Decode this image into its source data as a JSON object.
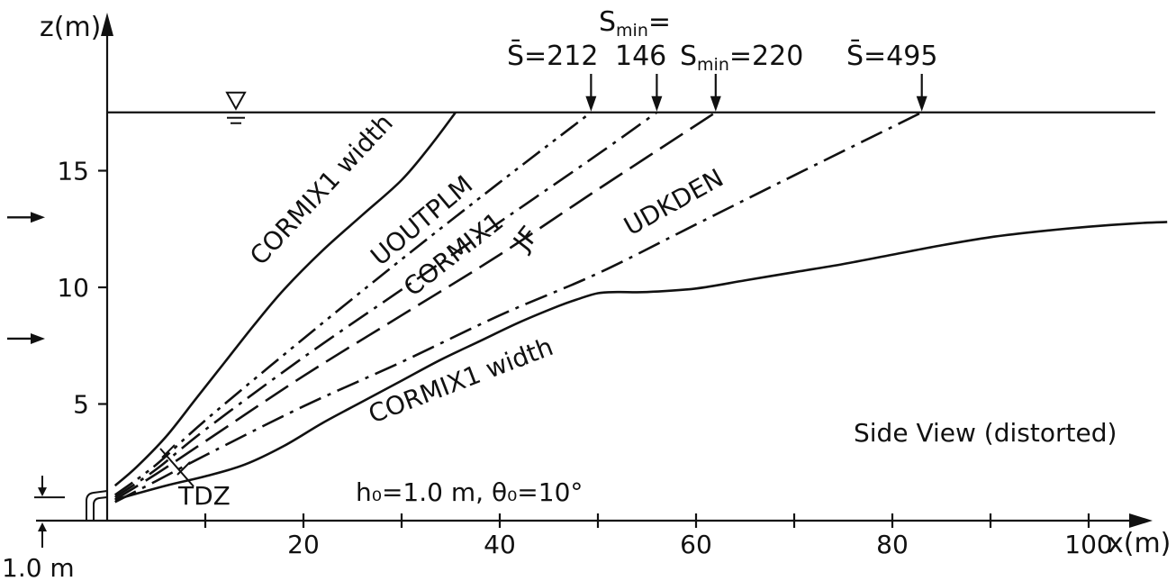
{
  "chart_data": {
    "type": "line",
    "title": "",
    "xlabel": "x(m)",
    "ylabel": "z(m)",
    "xlim": [
      -7,
      113
    ],
    "ylim": [
      0,
      21
    ],
    "x_ticks": [
      20,
      40,
      60,
      80,
      100
    ],
    "y_ticks": [
      5,
      10,
      15
    ],
    "grid": false,
    "free_surface_z": 17.5,
    "view_note": "Side View (distorted)",
    "params_label": "h₀=1.0 m,  θ₀=10°",
    "depth_label": "1.0 m",
    "tdz_label": "TDZ",
    "current_arrow_z": [
      13,
      7.8
    ],
    "series": [
      {
        "name": "CORMIX1 width",
        "label_kind": "upper-width",
        "dash": "solid",
        "x": [
          0.8,
          3,
          6,
          9,
          12,
          15,
          18,
          22,
          26,
          30,
          33,
          35.5
        ],
        "y": [
          1.5,
          2.3,
          3.6,
          5.2,
          6.8,
          8.4,
          9.9,
          11.6,
          13.1,
          14.6,
          16.1,
          17.5
        ]
      },
      {
        "name": "UOUTPLM",
        "label_kind": "centerline",
        "dash": "dashdotdot",
        "x": [
          0.8,
          5,
          10,
          20,
          30,
          40,
          49.3
        ],
        "y": [
          1.1,
          2.4,
          4.3,
          7.8,
          11.2,
          14.5,
          17.5
        ]
      },
      {
        "name": "CORMIX1",
        "label_kind": "centerline",
        "dash": "dashdot",
        "x": [
          0.8,
          5,
          10,
          20,
          30,
          40,
          50,
          56
        ],
        "y": [
          1.0,
          2.2,
          3.9,
          7.0,
          9.9,
          12.8,
          15.7,
          17.5
        ]
      },
      {
        "name": "JF",
        "label_kind": "centerline",
        "dash": "longdash",
        "x": [
          0.8,
          5,
          10,
          20,
          30,
          40,
          50,
          62
        ],
        "y": [
          0.9,
          2.0,
          3.4,
          6.2,
          8.8,
          11.4,
          14.2,
          17.5
        ]
      },
      {
        "name": "UDKDEN",
        "label_kind": "centerline",
        "dash": "dashdot",
        "x": [
          0.8,
          5,
          10,
          20,
          30,
          40,
          50,
          60,
          70,
          83
        ],
        "y": [
          0.8,
          1.7,
          2.8,
          4.9,
          6.8,
          8.8,
          10.6,
          12.7,
          14.8,
          17.5
        ]
      },
      {
        "name": "CORMIX1 width",
        "label_kind": "lower-width",
        "dash": "solid",
        "x": [
          0.8,
          6,
          10,
          14,
          18,
          22,
          26,
          30,
          34,
          38,
          42,
          46,
          48,
          50,
          52,
          55,
          60,
          65,
          70,
          75,
          80,
          85,
          90,
          95,
          100,
          105,
          108
        ],
        "y": [
          0.9,
          1.5,
          1.9,
          2.4,
          3.2,
          4.2,
          5.1,
          6.0,
          6.9,
          7.7,
          8.5,
          9.2,
          9.5,
          9.75,
          9.8,
          9.8,
          9.95,
          10.3,
          10.65,
          11.0,
          11.4,
          11.8,
          12.15,
          12.4,
          12.6,
          12.75,
          12.8
        ]
      }
    ],
    "annotations": [
      {
        "main": "S̄=212",
        "sub": "",
        "tail": "",
        "x_data": 49.3
      },
      {
        "main": "S",
        "sub": "min",
        "tail": "=",
        "second": "146",
        "x_data": 56
      },
      {
        "main": "S",
        "sub": "min",
        "tail": "=220",
        "x_data": 62
      },
      {
        "main": "S̄=495",
        "sub": "",
        "tail": "",
        "x_data": 83
      }
    ]
  }
}
